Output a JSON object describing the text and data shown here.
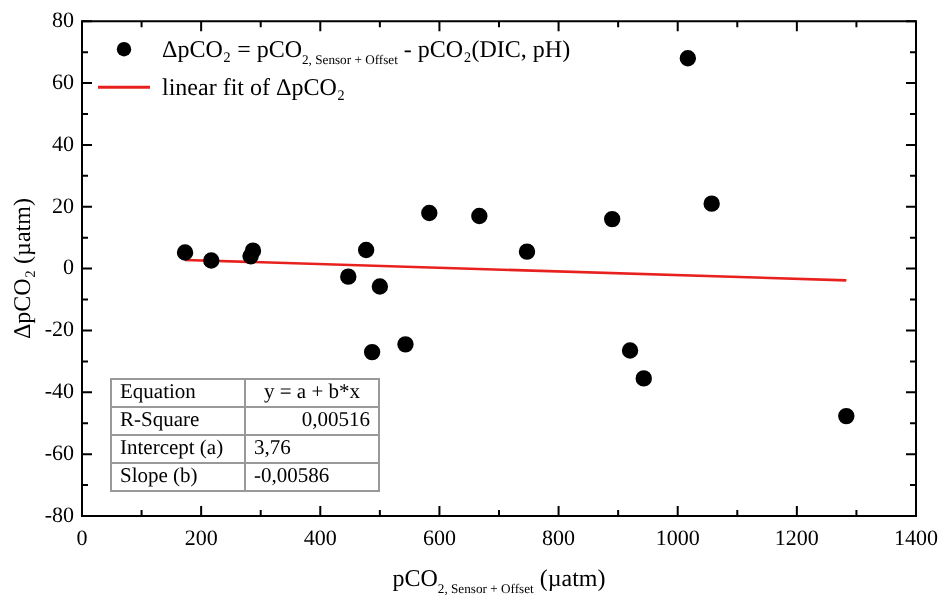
{
  "chart_data": {
    "type": "scatter",
    "xlabel": "pCO$_{2, Sensor + Offset}$ (µatm)",
    "ylabel": "ΔpCO₂ (µatm)",
    "xlim": [
      0,
      1400
    ],
    "xticks": [
      0,
      200,
      400,
      600,
      800,
      1000,
      1200,
      1400
    ],
    "ylim": [
      -80,
      80
    ],
    "yticks": [
      -80,
      -60,
      -40,
      -20,
      0,
      20,
      40,
      60,
      80
    ],
    "grid": false,
    "legend": "top left",
    "marker": "circle",
    "series": [
      {
        "name": "ΔpCO₂ = pCO$_{2, Sensor + Offset}$ - pCO₂(DIC, pH)",
        "color": "#000000",
        "x": [
          173,
          217,
          283,
          287,
          447,
          477,
          487,
          500,
          543,
          583,
          667,
          747,
          890,
          920,
          943,
          1017,
          1057,
          1283
        ],
        "values": [
          5.2,
          2.6,
          4,
          5.8,
          -2.6,
          6,
          -27,
          -5.8,
          -24.5,
          18,
          17,
          5.5,
          16,
          -26.5,
          -35.5,
          68,
          21,
          -47.7
        ]
      },
      {
        "name": "linear fit of ΔpCO₂",
        "type": "line",
        "color": "#e8211e",
        "x": [
          173,
          1283
        ],
        "values": [
          2.8,
          -3.8
        ],
        "marker": "none"
      }
    ],
    "annotations": [
      "Equation",
      "y = a + b*x",
      "R-Square",
      "0,00516",
      "Intercept (a)",
      "3,76",
      "Slope (b)",
      "-0,00586"
    ]
  }
}
